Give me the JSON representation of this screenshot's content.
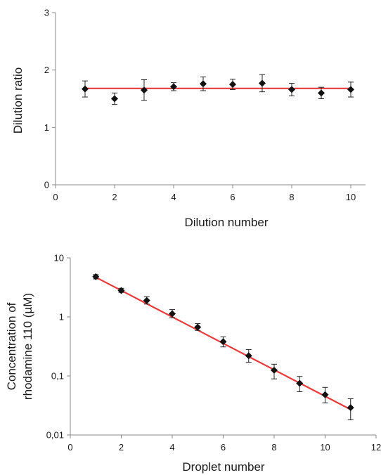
{
  "chart_data": [
    {
      "type": "scatter",
      "title": "",
      "xlabel": "Dilution number",
      "ylabel": "Dilution ratio",
      "xlim": [
        0,
        10.5
      ],
      "ylim": [
        0,
        3
      ],
      "x_ticks": [
        "0",
        "2",
        "4",
        "6",
        "8",
        "10"
      ],
      "y_ticks": [
        "0",
        "1",
        "2",
        "3"
      ],
      "series": [
        {
          "points": [
            {
              "x": 1,
              "y": 1.67,
              "err": 0.14
            },
            {
              "x": 2,
              "y": 1.5,
              "err": 0.1
            },
            {
              "x": 3,
              "y": 1.65,
              "err": 0.18
            },
            {
              "x": 4,
              "y": 1.71,
              "err": 0.07
            },
            {
              "x": 5,
              "y": 1.76,
              "err": 0.12
            },
            {
              "x": 6,
              "y": 1.75,
              "err": 0.09
            },
            {
              "x": 7,
              "y": 1.77,
              "err": 0.15
            },
            {
              "x": 8,
              "y": 1.66,
              "err": 0.11
            },
            {
              "x": 9,
              "y": 1.6,
              "err": 0.1
            },
            {
              "x": 10,
              "y": 1.66,
              "err": 0.13
            }
          ]
        }
      ],
      "fit_line": {
        "x": [
          1,
          10
        ],
        "y": [
          1.68,
          1.68
        ],
        "color": "#e83a3a"
      },
      "grid": false
    },
    {
      "type": "scatter",
      "title": "",
      "xlabel": "Droplet number",
      "ylabel": [
        "Concentration of",
        "rhodamine 110 (µM)"
      ],
      "yscale": "log",
      "xlim": [
        0,
        12
      ],
      "ylim": [
        0.01,
        10
      ],
      "x_ticks": [
        "0",
        "2",
        "4",
        "6",
        "8",
        "10",
        "12"
      ],
      "y_ticks": [
        "0,01",
        "0,1",
        "1",
        "10"
      ],
      "series": [
        {
          "points": [
            {
              "x": 1,
              "y": 4.8,
              "lo": 4.4,
              "hi": 5.2
            },
            {
              "x": 2,
              "y": 2.8,
              "lo": 2.6,
              "hi": 3.05
            },
            {
              "x": 3,
              "y": 1.9,
              "lo": 1.65,
              "hi": 2.2
            },
            {
              "x": 4,
              "y": 1.13,
              "lo": 0.97,
              "hi": 1.33
            },
            {
              "x": 5,
              "y": 0.67,
              "lo": 0.59,
              "hi": 0.77
            },
            {
              "x": 6,
              "y": 0.38,
              "lo": 0.31,
              "hi": 0.46
            },
            {
              "x": 7,
              "y": 0.22,
              "lo": 0.17,
              "hi": 0.28
            },
            {
              "x": 8,
              "y": 0.125,
              "lo": 0.089,
              "hi": 0.158
            },
            {
              "x": 9,
              "y": 0.075,
              "lo": 0.054,
              "hi": 0.098
            },
            {
              "x": 10,
              "y": 0.048,
              "lo": 0.035,
              "hi": 0.064
            },
            {
              "x": 11,
              "y": 0.029,
              "lo": 0.018,
              "hi": 0.041
            }
          ]
        }
      ],
      "fit_line": {
        "x": [
          1,
          11
        ],
        "y": [
          4.7,
          0.027
        ],
        "color": "#e83a3a"
      },
      "grid": false
    }
  ]
}
